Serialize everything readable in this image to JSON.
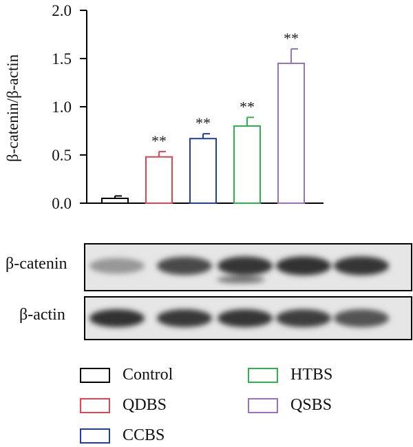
{
  "chart_data": {
    "type": "bar",
    "ylabel": "β-catenin/β-actin",
    "ylim": [
      0,
      2.0
    ],
    "yticks": [
      "0.0",
      "0.5",
      "1.0",
      "1.5",
      "2.0"
    ],
    "categories": [
      "Control",
      "QDBS",
      "CCBS",
      "HTBS",
      "QSBS"
    ],
    "values": [
      0.05,
      0.48,
      0.67,
      0.8,
      1.45
    ],
    "errors": [
      0.025,
      0.055,
      0.05,
      0.09,
      0.15
    ],
    "significance": [
      "",
      "**",
      "**",
      "**",
      "**"
    ],
    "colors": [
      "#000000",
      "#e8424f",
      "#1f3fa0",
      "#2db34a",
      "#9b6fc4"
    ],
    "grid": false
  },
  "blot": {
    "rows": [
      {
        "label": "β-catenin",
        "intensities": [
          0.35,
          0.8,
          0.92,
          0.95,
          0.92
        ]
      },
      {
        "label": "β-actin",
        "intensities": [
          0.95,
          0.9,
          0.92,
          0.88,
          0.75
        ]
      }
    ]
  },
  "legend": {
    "items": [
      {
        "label": "Control",
        "color": "#000000"
      },
      {
        "label": "QDBS",
        "color": "#e8424f"
      },
      {
        "label": "CCBS",
        "color": "#1f3fa0"
      },
      {
        "label": "HTBS",
        "color": "#2db34a"
      },
      {
        "label": "QSBS",
        "color": "#9b6fc4"
      }
    ]
  }
}
